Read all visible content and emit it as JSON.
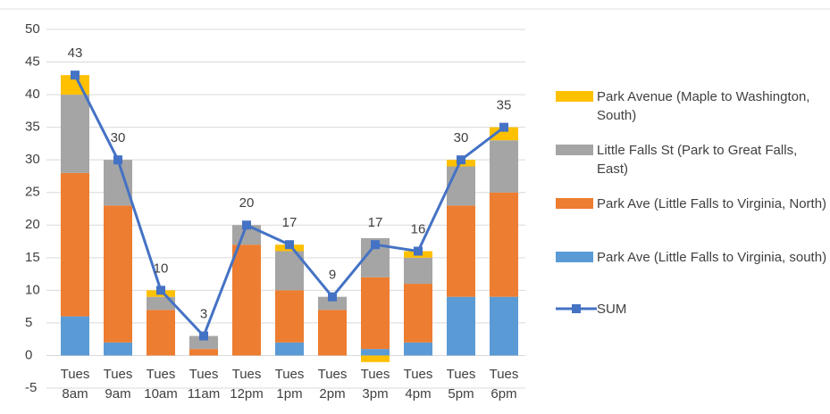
{
  "chart_data": {
    "type": "bar",
    "stacked": true,
    "categories": [
      "Tues 8am",
      "Tues 9am",
      "Tues 10am",
      "Tues 11am",
      "Tues 12pm",
      "Tues 1pm",
      "Tues 2pm",
      "Tues 3pm",
      "Tues 4pm",
      "Tues 5pm",
      "Tues 6pm"
    ],
    "series": [
      {
        "name": "Park Ave (Little Falls to Virginia, south)",
        "color": "#5b9bd5",
        "values": [
          6,
          2,
          0,
          0,
          0,
          2,
          0,
          1,
          2,
          9,
          9
        ]
      },
      {
        "name": "Park Ave (Little Falls to Virginia, North)",
        "color": "#ed7d31",
        "values": [
          22,
          21,
          7,
          1,
          17,
          8,
          7,
          11,
          9,
          14,
          16
        ]
      },
      {
        "name": "Little Falls St (Park to Great Falls, East)",
        "color": "#a5a5a5",
        "values": [
          12,
          7,
          2,
          2,
          3,
          6,
          2,
          6,
          4,
          6,
          8
        ]
      },
      {
        "name": "Park Avenue (Maple to Washington, South)",
        "color": "#ffc000",
        "values": [
          3,
          0,
          1,
          0,
          0,
          1,
          0,
          -1,
          1,
          1,
          2
        ]
      },
      {
        "name": "SUM",
        "type": "line",
        "marker": "square",
        "color": "#4472c4",
        "values": [
          43,
          30,
          10,
          3,
          20,
          17,
          9,
          17,
          16,
          30,
          35
        ],
        "data_labels": true
      }
    ],
    "ylim": [
      -5,
      50
    ],
    "yticks": [
      -5,
      0,
      5,
      10,
      15,
      20,
      25,
      30,
      35,
      40,
      45,
      50
    ],
    "grid": true,
    "legend": "right"
  }
}
